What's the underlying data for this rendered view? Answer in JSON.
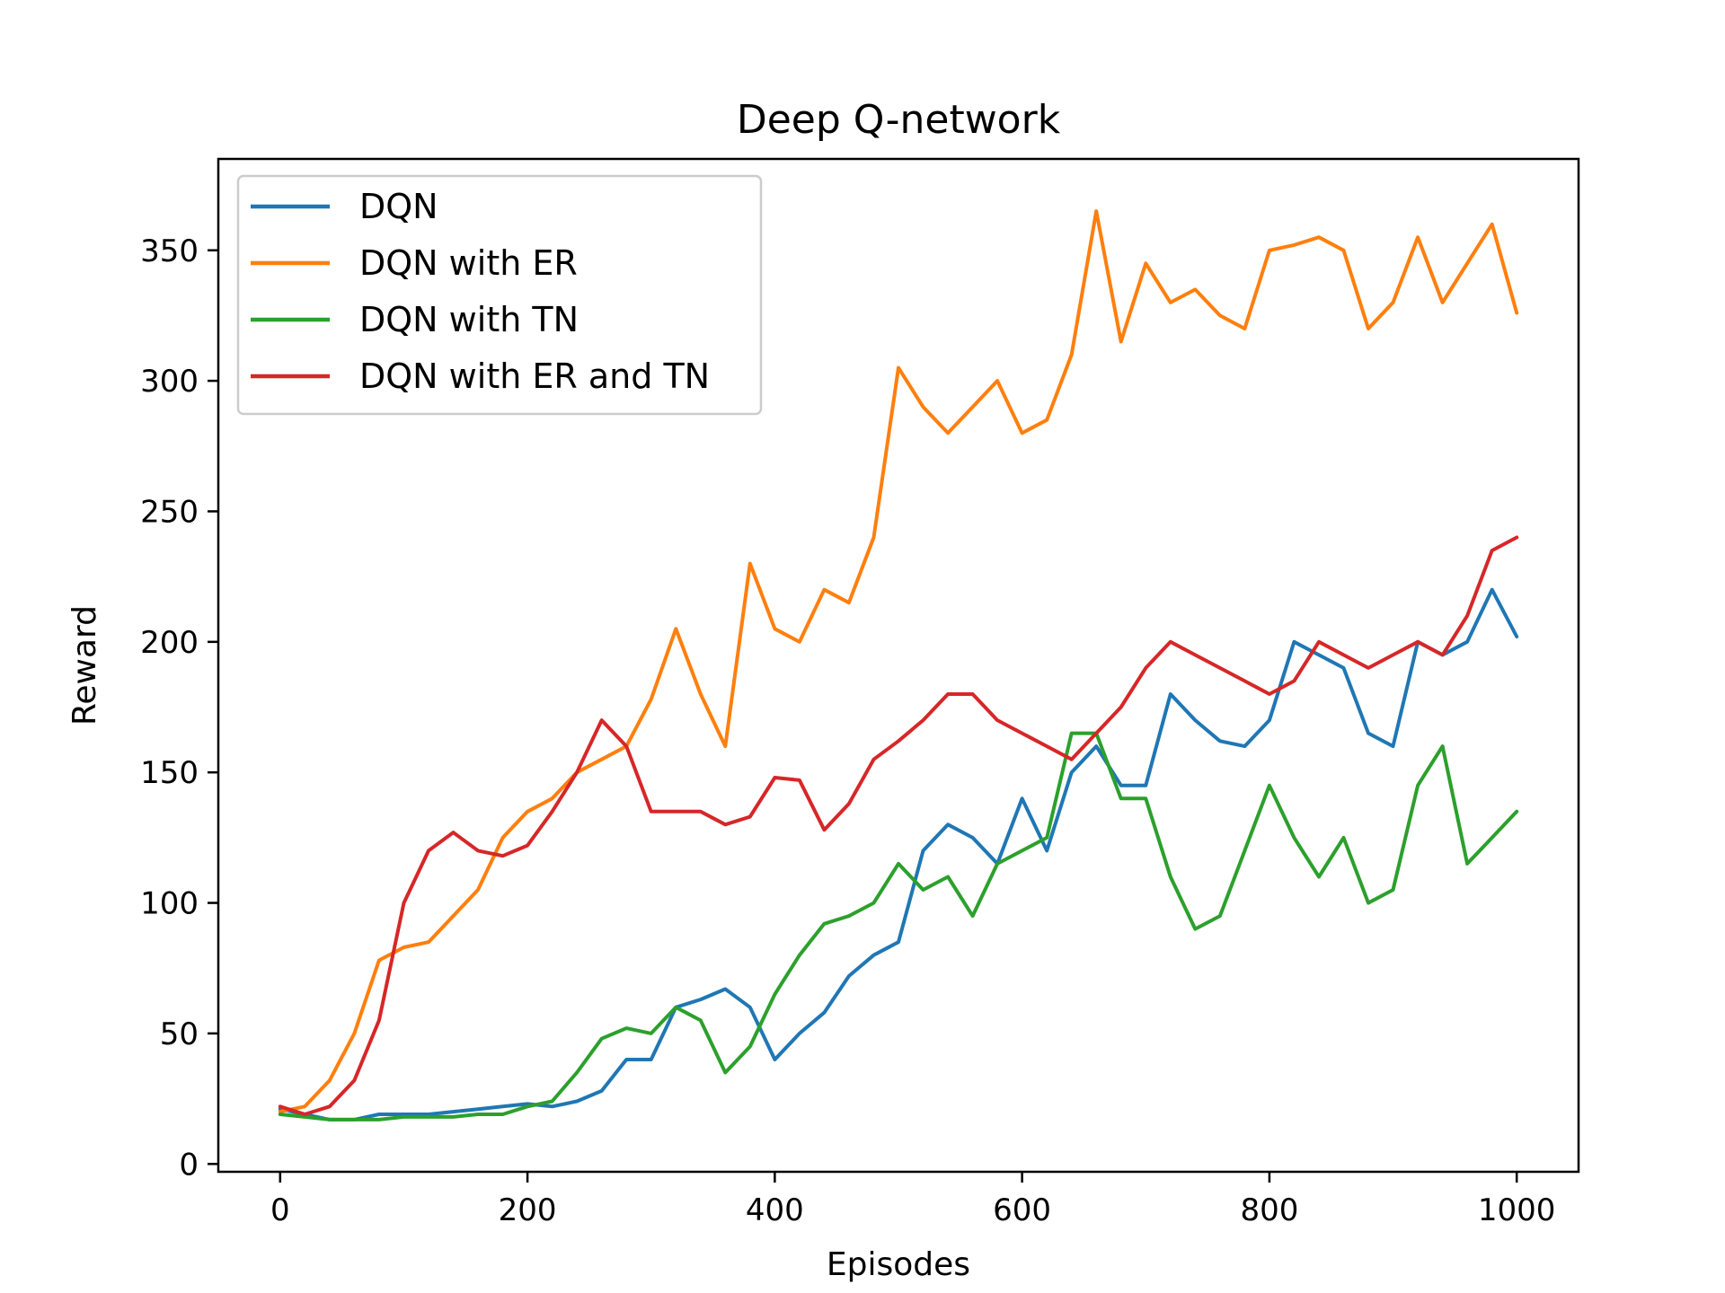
{
  "chart_data": {
    "type": "line",
    "title": "Deep Q-network",
    "xlabel": "Episodes",
    "ylabel": "Reward",
    "xlim": [
      -50,
      1050
    ],
    "ylim": [
      -3,
      385
    ],
    "xticks": [
      0,
      200,
      400,
      600,
      800,
      1000
    ],
    "yticks": [
      0,
      50,
      100,
      150,
      200,
      250,
      300,
      350
    ],
    "xtick_labels": [
      "0",
      "200",
      "400",
      "600",
      "800",
      "1000"
    ],
    "ytick_labels": [
      "0",
      "50",
      "100",
      "150",
      "200",
      "250",
      "300",
      "350"
    ],
    "grid": false,
    "legend_position": "top-left",
    "series": [
      {
        "name": "DQN",
        "color": "#1f77b4",
        "x": [
          0,
          20,
          40,
          60,
          80,
          100,
          120,
          140,
          160,
          180,
          200,
          220,
          240,
          260,
          280,
          300,
          320,
          340,
          360,
          380,
          400,
          420,
          440,
          460,
          480,
          500,
          520,
          540,
          560,
          580,
          600,
          620,
          640,
          660,
          680,
          700,
          720,
          740,
          760,
          780,
          800,
          820,
          840,
          860,
          880,
          900,
          920,
          940,
          960,
          980,
          1000
        ],
        "y": [
          21,
          19,
          17,
          17,
          19,
          19,
          19,
          20,
          21,
          22,
          23,
          22,
          24,
          28,
          40,
          40,
          60,
          63,
          67,
          60,
          40,
          50,
          58,
          72,
          80,
          85,
          120,
          130,
          125,
          115,
          140,
          120,
          150,
          160,
          145,
          145,
          180,
          170,
          162,
          160,
          170,
          200,
          195,
          190,
          165,
          160,
          200,
          195,
          200,
          220,
          202
        ]
      },
      {
        "name": "DQN with ER",
        "color": "#ff7f0e",
        "x": [
          0,
          20,
          40,
          60,
          80,
          100,
          120,
          140,
          160,
          180,
          200,
          220,
          240,
          260,
          280,
          300,
          320,
          340,
          360,
          380,
          400,
          420,
          440,
          460,
          480,
          500,
          520,
          540,
          560,
          580,
          600,
          620,
          640,
          660,
          680,
          700,
          720,
          740,
          760,
          780,
          800,
          820,
          840,
          860,
          880,
          900,
          920,
          940,
          960,
          980,
          1000
        ],
        "y": [
          20,
          22,
          32,
          50,
          78,
          83,
          85,
          95,
          105,
          125,
          135,
          140,
          150,
          155,
          160,
          178,
          205,
          180,
          160,
          230,
          205,
          200,
          220,
          215,
          240,
          305,
          290,
          280,
          290,
          300,
          280,
          285,
          310,
          365,
          315,
          345,
          330,
          335,
          325,
          320,
          350,
          352,
          355,
          350,
          320,
          330,
          355,
          330,
          345,
          360,
          326
        ]
      },
      {
        "name": "DQN with TN",
        "color": "#2ca02c",
        "x": [
          0,
          20,
          40,
          60,
          80,
          100,
          120,
          140,
          160,
          180,
          200,
          220,
          240,
          260,
          280,
          300,
          320,
          340,
          360,
          380,
          400,
          420,
          440,
          460,
          480,
          500,
          520,
          540,
          560,
          580,
          600,
          620,
          640,
          660,
          680,
          700,
          720,
          740,
          760,
          780,
          800,
          820,
          840,
          860,
          880,
          900,
          920,
          940,
          960,
          980,
          1000
        ],
        "y": [
          19,
          18,
          17,
          17,
          17,
          18,
          18,
          18,
          19,
          19,
          22,
          24,
          35,
          48,
          52,
          50,
          60,
          55,
          35,
          45,
          65,
          80,
          92,
          95,
          100,
          115,
          105,
          110,
          95,
          115,
          120,
          125,
          165,
          165,
          140,
          140,
          110,
          90,
          95,
          120,
          145,
          125,
          110,
          125,
          100,
          105,
          145,
          160,
          115,
          125,
          135
        ]
      },
      {
        "name": "DQN with ER and TN",
        "color": "#d62728",
        "x": [
          0,
          20,
          40,
          60,
          80,
          100,
          120,
          140,
          160,
          180,
          200,
          220,
          240,
          260,
          280,
          300,
          320,
          340,
          360,
          380,
          400,
          420,
          440,
          460,
          480,
          500,
          520,
          540,
          560,
          580,
          600,
          620,
          640,
          660,
          680,
          700,
          720,
          740,
          760,
          780,
          800,
          820,
          840,
          860,
          880,
          900,
          920,
          940,
          960,
          980,
          1000
        ],
        "y": [
          22,
          19,
          22,
          32,
          55,
          100,
          120,
          127,
          120,
          118,
          122,
          135,
          150,
          170,
          160,
          135,
          135,
          135,
          130,
          133,
          148,
          147,
          128,
          138,
          155,
          162,
          170,
          180,
          180,
          170,
          165,
          160,
          155,
          165,
          175,
          190,
          200,
          195,
          190,
          185,
          180,
          185,
          200,
          195,
          190,
          195,
          200,
          195,
          210,
          235,
          240
        ]
      }
    ]
  }
}
